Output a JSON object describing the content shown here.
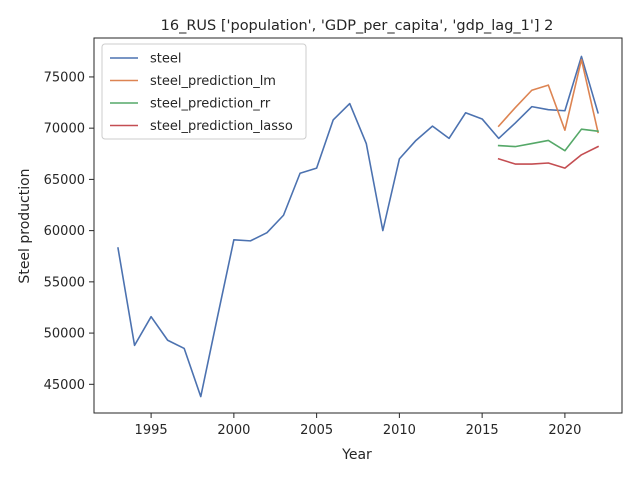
{
  "chart_data": {
    "type": "line",
    "title": "16_RUS ['population', 'GDP_per_capita', 'gdp_lag_1'] 2",
    "xlabel": "Year",
    "ylabel": "Steel production",
    "xlim": [
      1991.55,
      2023.45
    ],
    "ylim": [
      42200,
      78800
    ],
    "xticks": [
      1995,
      2000,
      2005,
      2010,
      2015,
      2020
    ],
    "yticks": [
      45000,
      50000,
      55000,
      60000,
      65000,
      70000,
      75000
    ],
    "grid": false,
    "legend_position": "top-left",
    "series": [
      {
        "name": "steel",
        "color": "#4c72b0",
        "x": [
          1993,
          1994,
          1995,
          1996,
          1997,
          1998,
          1999,
          2000,
          2001,
          2002,
          2003,
          2004,
          2005,
          2006,
          2007,
          2008,
          2009,
          2010,
          2011,
          2012,
          2013,
          2014,
          2015,
          2016,
          2017,
          2018,
          2019,
          2020,
          2021,
          2022
        ],
        "y": [
          58300,
          48800,
          51600,
          49300,
          48500,
          43800,
          51500,
          59100,
          59000,
          59800,
          61500,
          65600,
          66100,
          70800,
          72400,
          68500,
          60000,
          67000,
          68800,
          70200,
          69000,
          71500,
          70900,
          69000,
          70500,
          72100,
          71800,
          71700,
          77000,
          71500
        ]
      },
      {
        "name": "steel_prediction_lm",
        "color": "#dd8452",
        "x": [
          2016,
          2017,
          2018,
          2019,
          2020,
          2021,
          2022
        ],
        "y": [
          70200,
          72000,
          73700,
          74200,
          69800,
          76700,
          69600
        ]
      },
      {
        "name": "steel_prediction_rr",
        "color": "#55a868",
        "x": [
          2016,
          2017,
          2018,
          2019,
          2020,
          2021,
          2022
        ],
        "y": [
          68300,
          68200,
          68500,
          68800,
          67800,
          69900,
          69700
        ]
      },
      {
        "name": "steel_prediction_lasso",
        "color": "#c44e52",
        "x": [
          2016,
          2017,
          2018,
          2019,
          2020,
          2021,
          2022
        ],
        "y": [
          67000,
          66500,
          66500,
          66600,
          66100,
          67400,
          68200
        ]
      }
    ]
  }
}
